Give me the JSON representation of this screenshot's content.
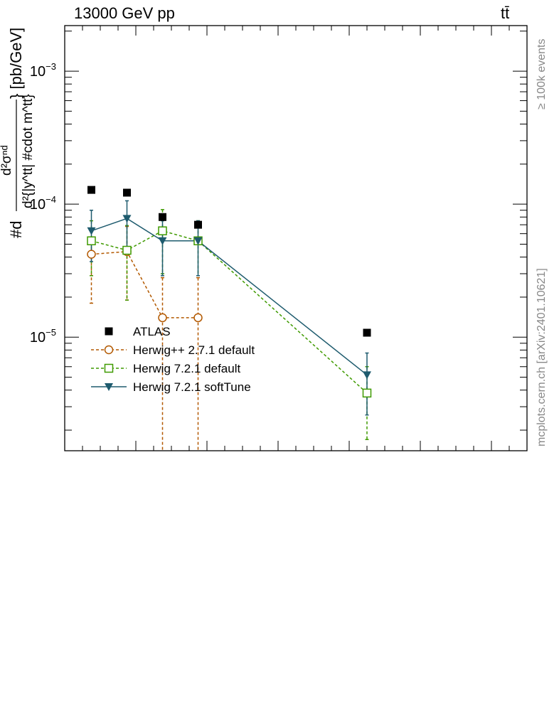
{
  "header": {
    "left_text": "13000 GeV pp",
    "right_text": "tt̄"
  },
  "side_text": {
    "events": "≥ 100k events",
    "source": "mcplots.cern.ch [arXiv:2401.10621]"
  },
  "colors": {
    "atlas": "#000000",
    "herwigpp": "#b35900",
    "herwig721": "#3f9a00",
    "softtune": "#1e5b6e",
    "side_text": "#888888"
  },
  "chart_data": {
    "type": "line",
    "title": "",
    "xlabel": "",
    "ylabel": "#d\\frac{d^{2}\\sigma^{nd}}{d^{2}{|y^{tt}| #cdot m^{tt}}} [pb/GeV]",
    "ylabel_parts": {
      "lead": "#d",
      "numerator": "d²σⁿᵈ",
      "denominator": "d²{|y^tt| #cdot m^tt}",
      "units": "} [pb/GeV]"
    },
    "y_scale": "log",
    "ylim": [
      1.4e-06,
      0.0022
    ],
    "xlim": [
      0.0,
      13.0
    ],
    "y_tick_labels": [
      "10^-5",
      "10^-4",
      "10^-3"
    ],
    "x_tick_labels": [],
    "grid": false,
    "legend_position": "center-left",
    "series": [
      {
        "name": "ATLAS",
        "marker": "filled-square",
        "style": "points",
        "x": [
          0.75,
          1.75,
          2.75,
          3.75,
          8.5
        ],
        "y": [
          0.000128,
          0.000122,
          8e-05,
          7e-05,
          1.08e-05
        ]
      },
      {
        "name": "Herwig++ 2.7.1 default",
        "marker": "open-circle",
        "style": "dashed",
        "x": [
          0.75,
          1.75,
          2.75,
          3.75
        ],
        "y": [
          4.2e-05,
          4.4e-05,
          1.4e-05,
          1.4e-05
        ],
        "err_low": [
          2.4e-05,
          2.5e-05,
          1.4e-05,
          1.4e-05
        ],
        "err_high": [
          1.4e-05,
          2.4e-05,
          1.4e-05,
          1.4e-05
        ]
      },
      {
        "name": "Herwig 7.2.1 default",
        "marker": "open-square",
        "style": "dashed",
        "x": [
          0.75,
          1.75,
          2.75,
          3.75,
          8.5
        ],
        "y": [
          5.3e-05,
          4.5e-05,
          6.3e-05,
          5.3e-05,
          3.8e-06
        ],
        "err_low": [
          2.4e-05,
          2.6e-05,
          3.3e-05,
          2.4e-05,
          2.1e-06
        ],
        "err_high": [
          2.2e-05,
          2.4e-05,
          2.8e-05,
          2.2e-05,
          2.2e-06
        ]
      },
      {
        "name": "Herwig 7.2.1 softTune",
        "marker": "filled-triangle-down",
        "style": "solid",
        "x": [
          0.75,
          1.75,
          2.75,
          3.75,
          8.5
        ],
        "y": [
          6.3e-05,
          7.8e-05,
          5.3e-05,
          5.3e-05,
          5.2e-06
        ],
        "err_low": [
          2.6e-05,
          3.6e-05,
          2.4e-05,
          2.4e-05,
          2.6e-06
        ],
        "err_high": [
          2.7e-05,
          2.8e-05,
          2.2e-05,
          2.2e-05,
          2.4e-06
        ]
      }
    ]
  }
}
